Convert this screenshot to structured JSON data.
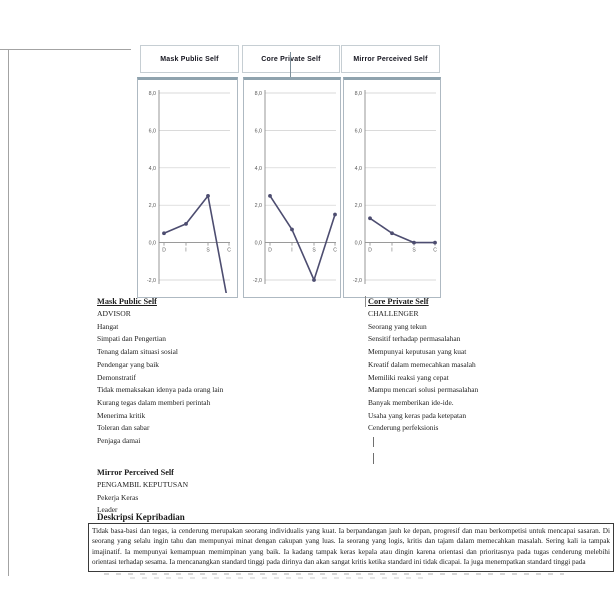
{
  "document": {
    "description_header": "Deskripsi Kepribadian",
    "description_text": "Tidak basa-basi dan tegas, ia cenderung merupakan seorang individualis yang kuat. Ia berpandangan jauh ke depan, progresif dan mau berkompetisi untuk mencapai sasaran. Di seorang yang selalu ingin tahu dan mempunyai minat dengan cakupan yang luas. Ia seorang yang logis, kritis dan tajam dalam memecahkan masalah. Sering kali ia tampak imajinatif. Ia mempunyai kemampuan memimpinan yang baik. Ia kadang tampak keras kepala atau dingin karena orientasi dan prioritasnya pada tugas cenderung melebihi orientasi terhadap sesama. Ia mencanangkan standard tinggi pada dirinya dan akan sangat kritis ketika standard ini tidak dicapai. Ia juga menempatkan standard tinggi pada"
  },
  "sections": [
    {
      "title": "Mask Public Self",
      "type_label": "ADVISOR",
      "traits": [
        "Hangat",
        "Simpati dan Pengertian",
        "Tenang dalam situasi sosial",
        "Pendengar yang baik",
        "Demonstratif",
        "Tidak memaksakan idenya pada orang lain",
        "Kurang tegas dalam memberi perintah",
        "Menerima kritik",
        "Toleran dan sabar",
        "Penjaga damai"
      ]
    },
    {
      "title": "Core Private Self",
      "type_label": "CHALLENGER",
      "traits": [
        "Seorang yang tekun",
        "Sensitif terhadap permasalahan",
        "Mempunyai keputusan yang kuat",
        "Kreatif dalam memecahkan masalah",
        "Memiliki reaksi yang cepat",
        "Mampu mencari solusi permasalahan",
        "Banyak memberikan ide-ide.",
        "Usaha yang keras pada ketepatan",
        "Cenderung perfeksionis"
      ]
    },
    {
      "title": "Mirror Perceived Self",
      "type_label": "PENGAMBIL KEPUTUSAN",
      "traits": [
        "Pekerja Keras",
        "Leader"
      ]
    }
  ],
  "chart_data": [
    {
      "type": "line",
      "title": "Mask Public Self",
      "categories": [
        "D",
        "I",
        "S",
        "C"
      ],
      "values": [
        0.5,
        1.0,
        2.5,
        -3.5
      ],
      "ylim": [
        -2,
        8
      ],
      "ytick_step": 2,
      "ytick_labels": [
        "8,0",
        "6,0",
        "4,0",
        "2,0",
        "0,0",
        "-2,0"
      ],
      "grid": true,
      "note": "C value extends below visible axis range"
    },
    {
      "type": "line",
      "title": "Core Private Self",
      "categories": [
        "D",
        "I",
        "S",
        "C"
      ],
      "values": [
        2.5,
        0.7,
        -2.0,
        1.5
      ],
      "ylim": [
        -2,
        8
      ],
      "ytick_step": 2,
      "ytick_labels": [
        "8,0",
        "6,0",
        "4,0",
        "2,0",
        "0,0",
        "-2,0"
      ],
      "grid": true
    },
    {
      "type": "line",
      "title": "Mirror Perceived Self",
      "categories": [
        "D",
        "I",
        "S",
        "C"
      ],
      "values": [
        1.3,
        0.5,
        0.0,
        0.0
      ],
      "ylim": [
        -2,
        8
      ],
      "ytick_step": 2,
      "ytick_labels": [
        "8,0",
        "6,0",
        "4,0",
        "2,0",
        "0,0",
        "-2,0"
      ],
      "grid": true
    }
  ],
  "colors": {
    "chart_line": "#4d4d70",
    "grid": "#cdcdcd",
    "axis": "#8c8c8c",
    "chart_box_border": "#aeb9c2",
    "chart_box_top_border": "#8fa3ae",
    "title_box_border": "#c6ced3",
    "page_edge": "#a3a3a3",
    "text": "#1c1c1c"
  }
}
